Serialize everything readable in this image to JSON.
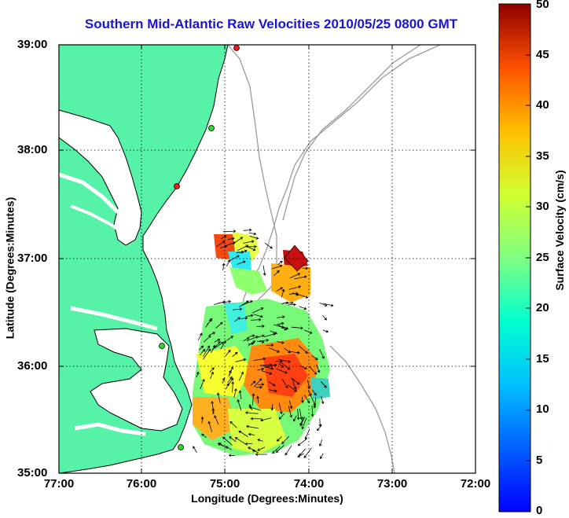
{
  "title": "Southern Mid-Atlantic Raw Velocities 2010/05/25 0800 GMT",
  "axes": {
    "xlabel": "Longitude (Degrees:Minutes)",
    "ylabel": "Latitude (Degrees:Minutes)",
    "xticks": [
      "77:00",
      "76:00",
      "75:00",
      "74:00",
      "73:00",
      "72:00"
    ],
    "yticks": [
      "39:00",
      "38:00",
      "37:00",
      "36:00",
      "35:00"
    ]
  },
  "colorbar": {
    "label": "Surface Velocity (cm/s)",
    "ticks": [
      "50",
      "45",
      "40",
      "35",
      "30",
      "25",
      "20",
      "15",
      "10",
      "5",
      "0"
    ],
    "range": [
      0,
      50
    ],
    "colormap": "jet"
  },
  "colors": {
    "land": "#55f2a8",
    "coast": "#000000",
    "bathymetry": "#9a9a9a",
    "title": "#1a14d6",
    "grid": "#000000"
  },
  "stations": [
    {
      "color": "#f21818"
    },
    {
      "color": "#2ad82a"
    },
    {
      "color": "#f21818"
    },
    {
      "color": "#2ad82a"
    },
    {
      "color": "#2ad82a"
    }
  ]
}
